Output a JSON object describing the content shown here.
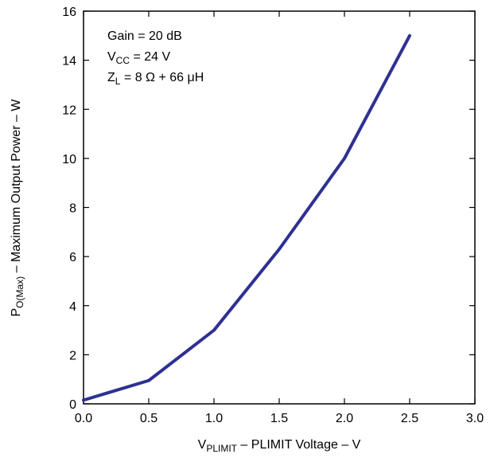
{
  "chart_data": {
    "type": "line",
    "x": [
      0.0,
      0.5,
      1.0,
      1.5,
      2.0,
      2.5
    ],
    "series": [
      {
        "values": [
          0.15,
          0.95,
          3.0,
          6.3,
          10.0,
          15.0
        ],
        "color": "#2e3192"
      }
    ],
    "xlim": [
      0.0,
      3.0
    ],
    "ylim": [
      0,
      16
    ],
    "xticks": [
      "0.0",
      "0.5",
      "1.0",
      "1.5",
      "2.0",
      "2.5",
      "3.0"
    ],
    "yticks": [
      "0",
      "2",
      "4",
      "6",
      "8",
      "10",
      "12",
      "14",
      "16"
    ],
    "xlabel": {
      "main": "V",
      "sub": "PLIMIT",
      "rest": " – PLIMIT Voltage – V"
    },
    "ylabel": {
      "main": "P",
      "sub": "O(Max)",
      "rest": " – Maximum Output Power – W"
    },
    "annotation": {
      "gain": "Gain = 20 dB",
      "vcc_main": "V",
      "vcc_sub": "CC",
      "vcc_rest": " = 24 V",
      "zl_main": "Z",
      "zl_sub": "L",
      "zl_rest": " = 8 Ω + 66 μH"
    },
    "grid": false,
    "legend": "none"
  }
}
